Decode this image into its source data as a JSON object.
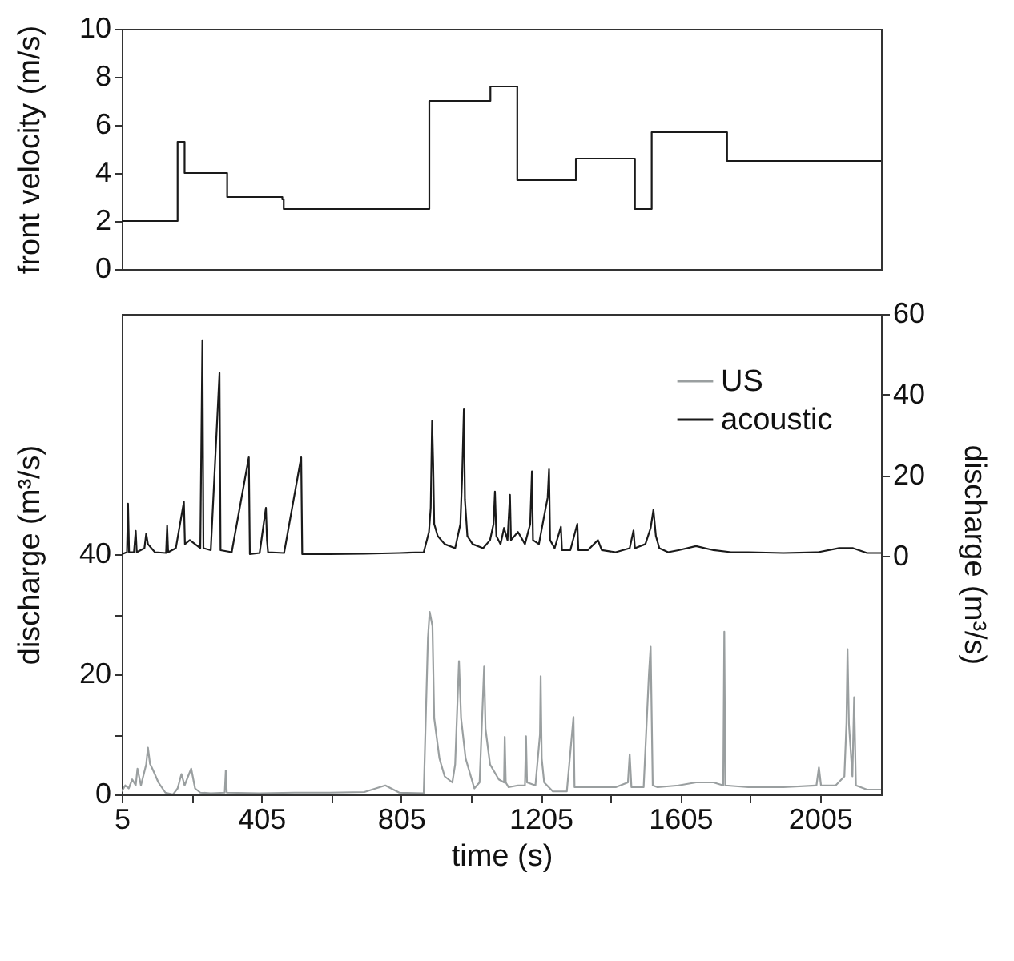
{
  "chart_data": [
    {
      "type": "step",
      "ylabel": "front velocity (m/s)",
      "xlim": [
        5,
        2180
      ],
      "ylim": [
        0,
        10
      ],
      "yticks": [
        0,
        2,
        4,
        6,
        8,
        10
      ],
      "tick_labels": "y",
      "color": "#1a1a1a",
      "x": [
        5,
        165,
        185,
        307,
        465,
        469,
        886,
        1061,
        1138,
        1306,
        1475,
        1523,
        1739,
        2180
      ],
      "values": [
        2.0,
        5.3,
        4.0,
        3.0,
        2.9,
        2.5,
        7.0,
        7.6,
        3.7,
        4.6,
        2.5,
        5.7,
        4.5,
        4.5
      ]
    },
    {
      "type": "line",
      "xlabel": "time (s)",
      "ylabel": "discharge (m³/s)",
      "y2label": "discharge (m³/s)",
      "legend": "top right",
      "xlim": [
        5,
        2180
      ],
      "xticks": [
        5,
        {
          "value": 205,
          "label": null
        },
        405,
        {
          "value": 605,
          "label": null
        },
        805,
        {
          "value": 1005,
          "label": null
        },
        1205,
        {
          "value": 1405,
          "label": null
        },
        1605,
        {
          "value": 1805,
          "label": null
        },
        2005
      ],
      "ylim": [
        0,
        80
      ],
      "yticks": [
        0,
        {
          "value": 10,
          "label": null
        },
        20,
        {
          "value": 30,
          "label": null
        },
        40
      ],
      "y2lim": [
        -59,
        60
      ],
      "y2ticks": [
        0,
        20,
        40,
        60
      ],
      "series": [
        {
          "name": "US",
          "color": "#9a9fa0",
          "x": [
            5,
            15,
            25,
            35,
            45,
            50,
            60,
            75,
            80,
            86,
            95,
            110,
            130,
            152,
            165,
            176,
            185,
            195,
            204,
            215,
            230,
            260,
            300,
            303,
            306,
            400,
            500,
            600,
            700,
            760,
            800,
            870,
            882,
            887,
            895,
            900,
            915,
            930,
            952,
            960,
            971,
            977,
            990,
            1015,
            1030,
            1043,
            1047,
            1060,
            1085,
            1100,
            1102,
            1105,
            1113,
            1140,
            1160,
            1163,
            1166,
            1190,
            1203,
            1205,
            1208,
            1215,
            1240,
            1280,
            1299,
            1302,
            1350,
            1420,
            1455,
            1460,
            1465,
            1500,
            1515,
            1520,
            1526,
            1540,
            1600,
            1650,
            1700,
            1728,
            1731,
            1734,
            1800,
            1900,
            1995,
            2002,
            2008,
            2050,
            2075,
            2081,
            2084,
            2088,
            2098,
            2103,
            2108,
            2140,
            2180
          ],
          "values": [
            0.5,
            1.5,
            1,
            2.5,
            1.5,
            4.3,
            1.5,
            5,
            7.8,
            5.1,
            4,
            2,
            0.3,
            0,
            1,
            3.4,
            1.5,
            3,
            4.3,
            1,
            0.3,
            0.2,
            0.3,
            4,
            0.3,
            0.2,
            0.3,
            0.3,
            0.4,
            1.5,
            0.3,
            0.2,
            26,
            30.4,
            28,
            12.7,
            6,
            3,
            2,
            5,
            22.2,
            12.7,
            6,
            1,
            2,
            21.3,
            10.9,
            5,
            2.5,
            2,
            9.6,
            2,
            1.2,
            1.5,
            1.5,
            9.7,
            2,
            1.5,
            10,
            19.7,
            6,
            2,
            0.5,
            0.5,
            12.9,
            1.2,
            1.2,
            1.2,
            2,
            6.7,
            1.2,
            1.2,
            20,
            24.6,
            1.5,
            1.2,
            1.5,
            2,
            2,
            1.5,
            27.1,
            1.5,
            1.2,
            1.2,
            1.5,
            4.5,
            1.5,
            1.5,
            3,
            12,
            24.2,
            11.8,
            3,
            16.2,
            1.5,
            0.8,
            0.8
          ]
        },
        {
          "name": "acoustic",
          "color": "#1a1a1a",
          "axis": "y2",
          "x": [
            5,
            20,
            23,
            26,
            40,
            45,
            48,
            70,
            75,
            80,
            90,
            100,
            132,
            135,
            138,
            160,
            183,
            186,
            200,
            215,
            230,
            236,
            239,
            260,
            285,
            288,
            320,
            369,
            372,
            400,
            418,
            421,
            424,
            470,
            519,
            522,
            600,
            700,
            800,
            870,
            885,
            890,
            894,
            897,
            900,
            910,
            930,
            960,
            975,
            980,
            985,
            988,
            995,
            1010,
            1040,
            1060,
            1070,
            1074,
            1078,
            1090,
            1100,
            1110,
            1117,
            1120,
            1140,
            1160,
            1175,
            1180,
            1183,
            1200,
            1215,
            1225,
            1229,
            1232,
            1245,
            1263,
            1266,
            1290,
            1310,
            1313,
            1340,
            1369,
            1380,
            1420,
            1460,
            1471,
            1475,
            1505,
            1520,
            1528,
            1535,
            1545,
            1570,
            1600,
            1650,
            1700,
            1750,
            1800,
            1900,
            2000,
            2060,
            2100,
            2140,
            2180
          ],
          "values": [
            0.5,
            1,
            13,
            1,
            1,
            6.3,
            1,
            2,
            5.6,
            3,
            2,
            1,
            0.8,
            7.6,
            1,
            2,
            13.5,
            3,
            4,
            3,
            2,
            53.5,
            2,
            1.5,
            45.4,
            1.5,
            1,
            24.5,
            0.5,
            0.8,
            12,
            4,
            1,
            0.8,
            24.5,
            0.5,
            0.5,
            0.6,
            0.8,
            1,
            6,
            12,
            33.5,
            23,
            8,
            5,
            3,
            2,
            8,
            19.6,
            36.4,
            14,
            5,
            3,
            2,
            4,
            8,
            16,
            5,
            3,
            7,
            4,
            15.2,
            4,
            6,
            3,
            8,
            21,
            4,
            3,
            10,
            14.5,
            21.5,
            4,
            2,
            7.3,
            1.5,
            1.5,
            8,
            1.5,
            1.5,
            4,
            1.5,
            1,
            2,
            6.4,
            2,
            3,
            7,
            11.5,
            5,
            2,
            1,
            1.5,
            2.5,
            1.5,
            1,
            1,
            0.8,
            1,
            2,
            2,
            0.8,
            0.8
          ]
        }
      ]
    }
  ]
}
